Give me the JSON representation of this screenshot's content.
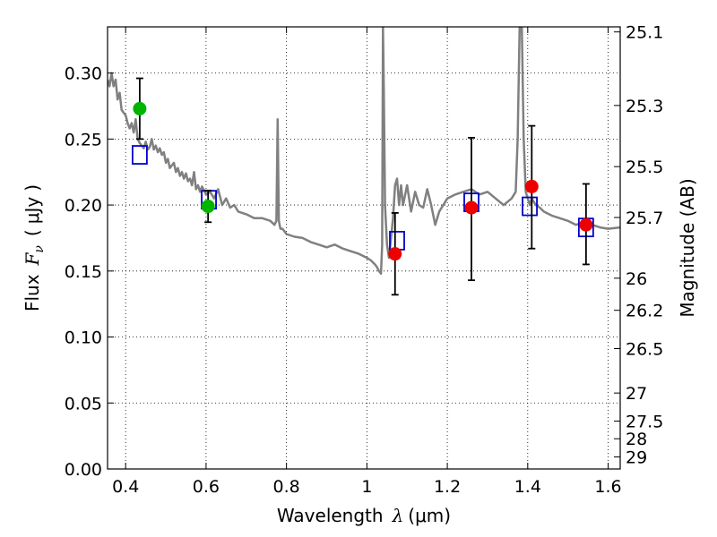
{
  "chart_data": {
    "type": "scatter",
    "title": "",
    "xlabel": "Wavelength  λ (μm)",
    "ylabel": "Flux  F_ν  ( μJy )",
    "ylabel_parts": {
      "prefix": "Flux",
      "symbol": "F",
      "subscript": "ν",
      "open": "(",
      "unit": "μJy",
      "close": ")"
    },
    "xlabel_parts": {
      "prefix": "Wavelength",
      "symbol": "λ",
      "unit": "(μm)"
    },
    "y2label": "Magnitude (AB)",
    "xlim": [
      0.355,
      1.63
    ],
    "ylim": [
      0.0,
      0.335
    ],
    "grid": true,
    "x_ticks": [
      0.4,
      0.6,
      0.8,
      1.0,
      1.2,
      1.4,
      1.6
    ],
    "x_tick_labels": [
      "0.4",
      "0.6",
      "0.8",
      "1",
      "1.2",
      "1.4",
      "1.6"
    ],
    "y_ticks": [
      0.0,
      0.05,
      0.1,
      0.15,
      0.2,
      0.25,
      0.3
    ],
    "y_tick_labels": [
      "0.00",
      "0.05",
      "0.10",
      "0.15",
      "0.20",
      "0.25",
      "0.30"
    ],
    "mag_ticks": [
      25.1,
      25.3,
      25.5,
      25.7,
      26,
      26.2,
      26.5,
      27,
      27.5,
      28,
      29
    ],
    "mag_tick_labels": [
      "25.1",
      "25.3",
      "25.5",
      "25.7",
      "26",
      "26.2",
      "26.5",
      "27",
      "27.5",
      "28",
      "29"
    ],
    "colors": {
      "model": "#808080",
      "optical": "#00b400",
      "nir": "#ee0000",
      "model_band": "#0000cc",
      "errorbar": "#000000",
      "grid": "#000000"
    },
    "series": [
      {
        "kind": "model_spectrum",
        "x": [
          0.355,
          0.36,
          0.365,
          0.37,
          0.375,
          0.38,
          0.385,
          0.39,
          0.395,
          0.4,
          0.405,
          0.41,
          0.415,
          0.42,
          0.425,
          0.43,
          0.435,
          0.44,
          0.445,
          0.45,
          0.455,
          0.46,
          0.465,
          0.47,
          0.475,
          0.48,
          0.485,
          0.49,
          0.495,
          0.5,
          0.505,
          0.51,
          0.515,
          0.52,
          0.525,
          0.53,
          0.535,
          0.54,
          0.545,
          0.55,
          0.555,
          0.56,
          0.565,
          0.57,
          0.575,
          0.58,
          0.585,
          0.59,
          0.6,
          0.61,
          0.62,
          0.63,
          0.64,
          0.65,
          0.66,
          0.67,
          0.68,
          0.7,
          0.72,
          0.74,
          0.76,
          0.77,
          0.775,
          0.778,
          0.781,
          0.785,
          0.79,
          0.8,
          0.82,
          0.84,
          0.86,
          0.88,
          0.9,
          0.92,
          0.94,
          0.96,
          0.98,
          1.0,
          1.01,
          1.02,
          1.025,
          1.03,
          1.035,
          1.038,
          1.04,
          1.042,
          1.045,
          1.05,
          1.055,
          1.06,
          1.065,
          1.07,
          1.075,
          1.08,
          1.085,
          1.09,
          1.1,
          1.11,
          1.12,
          1.13,
          1.14,
          1.15,
          1.16,
          1.17,
          1.18,
          1.2,
          1.22,
          1.24,
          1.26,
          1.28,
          1.3,
          1.32,
          1.34,
          1.36,
          1.37,
          1.375,
          1.38,
          1.385,
          1.39,
          1.395,
          1.4,
          1.405,
          1.41,
          1.42,
          1.43,
          1.44,
          1.46,
          1.48,
          1.5,
          1.52,
          1.54,
          1.56,
          1.58,
          1.6,
          1.63
        ],
        "y": [
          0.295,
          0.29,
          0.3,
          0.29,
          0.295,
          0.28,
          0.285,
          0.272,
          0.27,
          0.268,
          0.262,
          0.258,
          0.262,
          0.255,
          0.265,
          0.25,
          0.247,
          0.245,
          0.243,
          0.248,
          0.242,
          0.244,
          0.25,
          0.242,
          0.245,
          0.24,
          0.243,
          0.238,
          0.24,
          0.232,
          0.235,
          0.228,
          0.23,
          0.232,
          0.225,
          0.228,
          0.222,
          0.225,
          0.22,
          0.224,
          0.218,
          0.22,
          0.215,
          0.225,
          0.212,
          0.215,
          0.21,
          0.214,
          0.208,
          0.21,
          0.205,
          0.212,
          0.2,
          0.205,
          0.198,
          0.2,
          0.195,
          0.193,
          0.19,
          0.19,
          0.188,
          0.185,
          0.188,
          0.265,
          0.188,
          0.182,
          0.182,
          0.178,
          0.176,
          0.175,
          0.172,
          0.17,
          0.168,
          0.17,
          0.167,
          0.165,
          0.163,
          0.16,
          0.158,
          0.155,
          0.153,
          0.15,
          0.148,
          0.17,
          0.335,
          0.29,
          0.2,
          0.17,
          0.16,
          0.175,
          0.19,
          0.215,
          0.22,
          0.2,
          0.215,
          0.2,
          0.215,
          0.195,
          0.21,
          0.2,
          0.198,
          0.212,
          0.2,
          0.185,
          0.195,
          0.205,
          0.208,
          0.21,
          0.212,
          0.208,
          0.21,
          0.205,
          0.2,
          0.205,
          0.21,
          0.25,
          0.335,
          0.34,
          0.25,
          0.21,
          0.205,
          0.2,
          0.205,
          0.2,
          0.198,
          0.195,
          0.192,
          0.19,
          0.188,
          0.185,
          0.187,
          0.185,
          0.183,
          0.182,
          0.183
        ]
      },
      {
        "name": "",
        "kind": "observed",
        "color_key": "optical",
        "x": [
          0.435,
          0.605
        ],
        "y": [
          0.273,
          0.199
        ],
        "yerr_low": [
          0.25,
          0.187
        ],
        "yerr_high": [
          0.296,
          0.211
        ]
      },
      {
        "name": "",
        "kind": "observed",
        "color_key": "nir",
        "x": [
          1.07,
          1.26,
          1.41,
          1.545
        ],
        "y": [
          0.163,
          0.198,
          0.214,
          0.185
        ],
        "yerr_low": [
          0.132,
          0.143,
          0.167,
          0.155
        ],
        "yerr_high": [
          0.194,
          0.251,
          0.26,
          0.216
        ]
      },
      {
        "name": "",
        "kind": "model_band",
        "color_key": "model_band",
        "x": [
          0.435,
          0.607,
          1.075,
          1.26,
          1.405,
          1.545
        ],
        "y": [
          0.238,
          0.204,
          0.173,
          0.202,
          0.199,
          0.183
        ]
      }
    ]
  }
}
